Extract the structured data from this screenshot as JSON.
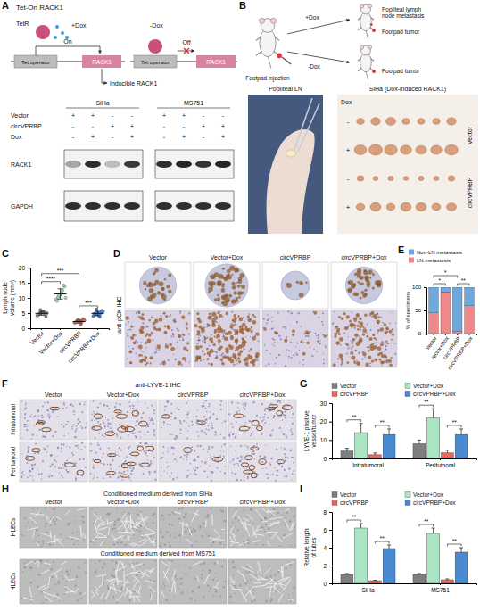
{
  "panel_labels": [
    "A",
    "B",
    "C",
    "D",
    "E",
    "F",
    "G",
    "H",
    "I"
  ],
  "tet_on": {
    "title": "Tet-On RACK1",
    "tetr": "TetR",
    "plus_dox": "+Dox",
    "minus_dox": "-Dox",
    "on": "On",
    "off": "Off",
    "operator": "Tet operator",
    "gene": "RACK1",
    "inducible": "Inducible RACK1"
  },
  "western_blot": {
    "cell_lines": [
      "SiHa",
      "MS751"
    ],
    "rows": [
      {
        "label": "Vector",
        "signs": [
          "+",
          "+",
          "-",
          "-",
          "+",
          "+",
          "-",
          "-"
        ]
      },
      {
        "label": "circVPRBP",
        "signs": [
          "-",
          "-",
          "+",
          "+",
          "-",
          "-",
          "+",
          "+"
        ]
      },
      {
        "label": "Dox",
        "signs": [
          "-",
          "+",
          "-",
          "+",
          "-",
          "+",
          "-",
          "+"
        ]
      }
    ],
    "bands": [
      "RACK1",
      "GAPDH"
    ]
  },
  "mouse_model": {
    "injection": "Footpad injection",
    "plus_dox": "+Dox",
    "minus_dox": "-Dox",
    "metastasis": "Popliteal lymph node metastasis",
    "tumor": "Footpad tumor",
    "photo_label": "Popliteal LN",
    "grid_title": "SiHa (Dox-induced RACK1)",
    "dox_header": "Dox",
    "row_signs": [
      "-",
      "+",
      "-",
      "+"
    ],
    "groups": [
      "Vector",
      "circVPRBP"
    ]
  },
  "ihc_pck": {
    "columns": [
      "Vector",
      "Vector+Dox",
      "circVPRBP",
      "circVPRBP+Dox"
    ],
    "stain": "anti-pCK IHC"
  },
  "ihc_lyve1": {
    "stain": "anti-LYVE-1 IHC",
    "columns": [
      "Vector",
      "Vector+Dox",
      "circVPRBP",
      "circVPRBP+Dox"
    ],
    "rows": [
      "Intratumoral",
      "Peritumoral"
    ]
  },
  "tube_formation": {
    "sections": [
      "Conditioned medium derived from SiHa",
      "Conditioned medium derived from MS751"
    ],
    "columns": [
      "Vector",
      "Vector+Dox",
      "circVPRBP",
      "circVPRBP+Dox"
    ],
    "row_label": "HLECs"
  },
  "chart_data": [
    {
      "type": "scatter",
      "y_label": "Lymph node volume (mm³)",
      "categories": [
        "Vector",
        "Vector+Dox",
        "circVPRBP",
        "circVPRBP+Dox"
      ],
      "colors": [
        "#7f7f7f",
        "#9fdcb9",
        "#e8685f",
        "#4a8ad0"
      ],
      "values": [
        [
          4.2,
          4.8,
          5.1,
          5.5,
          3.9,
          4.5,
          6.0,
          5.3,
          4.7,
          5.0
        ],
        [
          9.5,
          10.2,
          11.0,
          12.5,
          13.8,
          9.0,
          10.8,
          11.5,
          14.2,
          10.0
        ],
        [
          1.8,
          2.2,
          2.5,
          1.5,
          3.0,
          2.0,
          2.8,
          1.2,
          2.4,
          2.6
        ],
        [
          4.0,
          4.5,
          5.2,
          3.8,
          5.8,
          4.8,
          6.2,
          4.2,
          5.0,
          5.5
        ]
      ],
      "means": [
        4.9,
        11.3,
        2.2,
        4.9
      ],
      "errors": [
        0.6,
        1.7,
        0.5,
        0.7
      ],
      "ylim": [
        0,
        20
      ],
      "yticks": [
        0,
        5,
        10,
        15,
        20
      ],
      "annotations": [
        {
          "from": 0,
          "to": 1,
          "text": "****"
        },
        {
          "from": 2,
          "to": 3,
          "text": "***"
        },
        {
          "from": 0,
          "to": 2,
          "text": "***"
        }
      ]
    },
    {
      "type": "bar",
      "stacked": true,
      "y_label": "% of specimens",
      "categories": [
        "Vector",
        "Vector+Dox",
        "circVPRBP",
        "circVPRBP+Dox"
      ],
      "series": [
        {
          "name": "Non-LN metastasis",
          "color": "#6fa8dc",
          "values": [
            55,
            10,
            95,
            40
          ]
        },
        {
          "name": "LN metastasis",
          "color": "#f08a8a",
          "values": [
            45,
            90,
            5,
            60
          ]
        }
      ],
      "ylim": [
        0,
        100
      ],
      "yticks": [
        0,
        50,
        100
      ],
      "legend": "top",
      "annotations": [
        {
          "from": 0,
          "to": 1,
          "text": "*"
        },
        {
          "from": 2,
          "to": 3,
          "text": "**"
        },
        {
          "from": 0,
          "to": 2,
          "text": "*"
        }
      ]
    },
    {
      "type": "bar",
      "y_label": "LYVE-1 positive vessel/tumor",
      "categories": [
        "Intratumoral",
        "Peritumoral"
      ],
      "series": [
        {
          "name": "Vector",
          "color": "#7f7f7f",
          "values": [
            4,
            8
          ],
          "errors": [
            1.5,
            2
          ]
        },
        {
          "name": "Vector+Dox",
          "color": "#a9e4c3",
          "values": [
            14,
            22
          ],
          "errors": [
            5,
            5
          ]
        },
        {
          "name": "circVPRBP",
          "color": "#e8685f",
          "values": [
            2,
            3
          ],
          "errors": [
            1,
            1.5
          ]
        },
        {
          "name": "circVPRBP+Dox",
          "color": "#4a8ad0",
          "values": [
            13,
            13
          ],
          "errors": [
            3,
            3
          ]
        }
      ],
      "ylim": [
        0,
        30
      ],
      "yticks": [
        0,
        10,
        20,
        30
      ],
      "legend": "top",
      "annotations": [
        {
          "group": 0,
          "from": 0,
          "to": 1,
          "text": "**"
        },
        {
          "group": 0,
          "from": 2,
          "to": 3,
          "text": "**"
        },
        {
          "group": 1,
          "from": 0,
          "to": 1,
          "text": "**"
        },
        {
          "group": 1,
          "from": 2,
          "to": 3,
          "text": "**"
        }
      ]
    },
    {
      "type": "bar",
      "y_label": "Relative length of tubes",
      "categories": [
        "SiHa",
        "MS751"
      ],
      "series": [
        {
          "name": "Vector",
          "color": "#7f7f7f",
          "values": [
            1,
            1
          ],
          "errors": [
            0.1,
            0.1
          ]
        },
        {
          "name": "Vector+Dox",
          "color": "#a9e4c3",
          "values": [
            6.2,
            5.6
          ],
          "errors": [
            0.5,
            0.6
          ]
        },
        {
          "name": "circVPRBP",
          "color": "#e8685f",
          "values": [
            0.3,
            0.4
          ],
          "errors": [
            0.05,
            0.1
          ]
        },
        {
          "name": "circVPRBP+Dox",
          "color": "#4a8ad0",
          "values": [
            3.9,
            3.5
          ],
          "errors": [
            0.4,
            0.5
          ]
        }
      ],
      "ylim": [
        0,
        8
      ],
      "yticks": [
        0,
        2,
        4,
        6,
        8
      ],
      "legend": "top",
      "annotations": [
        {
          "group": 0,
          "from": 0,
          "to": 1,
          "text": "**"
        },
        {
          "group": 0,
          "from": 2,
          "to": 3,
          "text": "**"
        },
        {
          "group": 1,
          "from": 0,
          "to": 1,
          "text": "**"
        },
        {
          "group": 1,
          "from": 2,
          "to": 3,
          "text": "**"
        }
      ]
    }
  ]
}
